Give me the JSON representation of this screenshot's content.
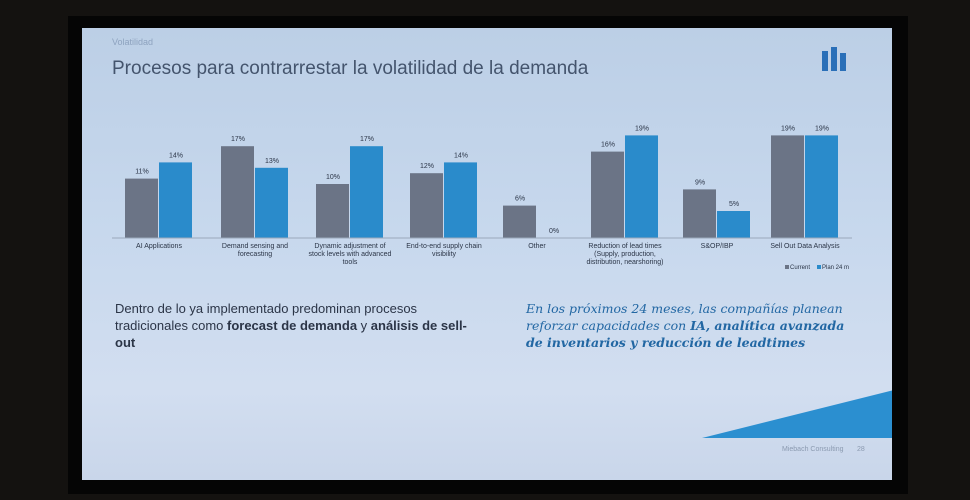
{
  "slide": {
    "kicker": "Volatilidad",
    "title": "Procesos para contrarrestar la volatilidad de la demanda",
    "left_text": {
      "pre": "Dentro de lo ya implementado predominan procesos tradicionales como ",
      "bold1": "forecast de demanda",
      "mid": " y ",
      "bold2": "análisis de sell-out"
    },
    "right_text": {
      "pre": "En los próximos 24 meses, las compañías planean reforzar capacidades con ",
      "bold": "IA, analítica avanzada de inventarios y reducción de leadtimes"
    },
    "footer": "Miebach Consulting",
    "page": "28"
  },
  "colors": {
    "current": "#6b7486",
    "plan": "#2a8bcb"
  },
  "chart_data": {
    "type": "bar",
    "categories": [
      "AI Applications",
      "Demand sensing and forecasting",
      "Dynamic adjustment of stock levels with advanced tools",
      "End-to-end supply chain visibility",
      "Other",
      "Reduction of lead times (Supply, production, distribution, nearshoring)",
      "S&OP/IBP",
      "Sell Out Data Analysis"
    ],
    "series": [
      {
        "name": "Current",
        "values": [
          11,
          17,
          10,
          12,
          6,
          16,
          9,
          19
        ]
      },
      {
        "name": "Plan 24 m",
        "values": [
          14,
          13,
          17,
          14,
          0,
          19,
          5,
          19
        ]
      }
    ],
    "value_suffix": "%",
    "ylim": [
      0,
      20
    ],
    "legend": "bottom-right",
    "grid": false
  }
}
